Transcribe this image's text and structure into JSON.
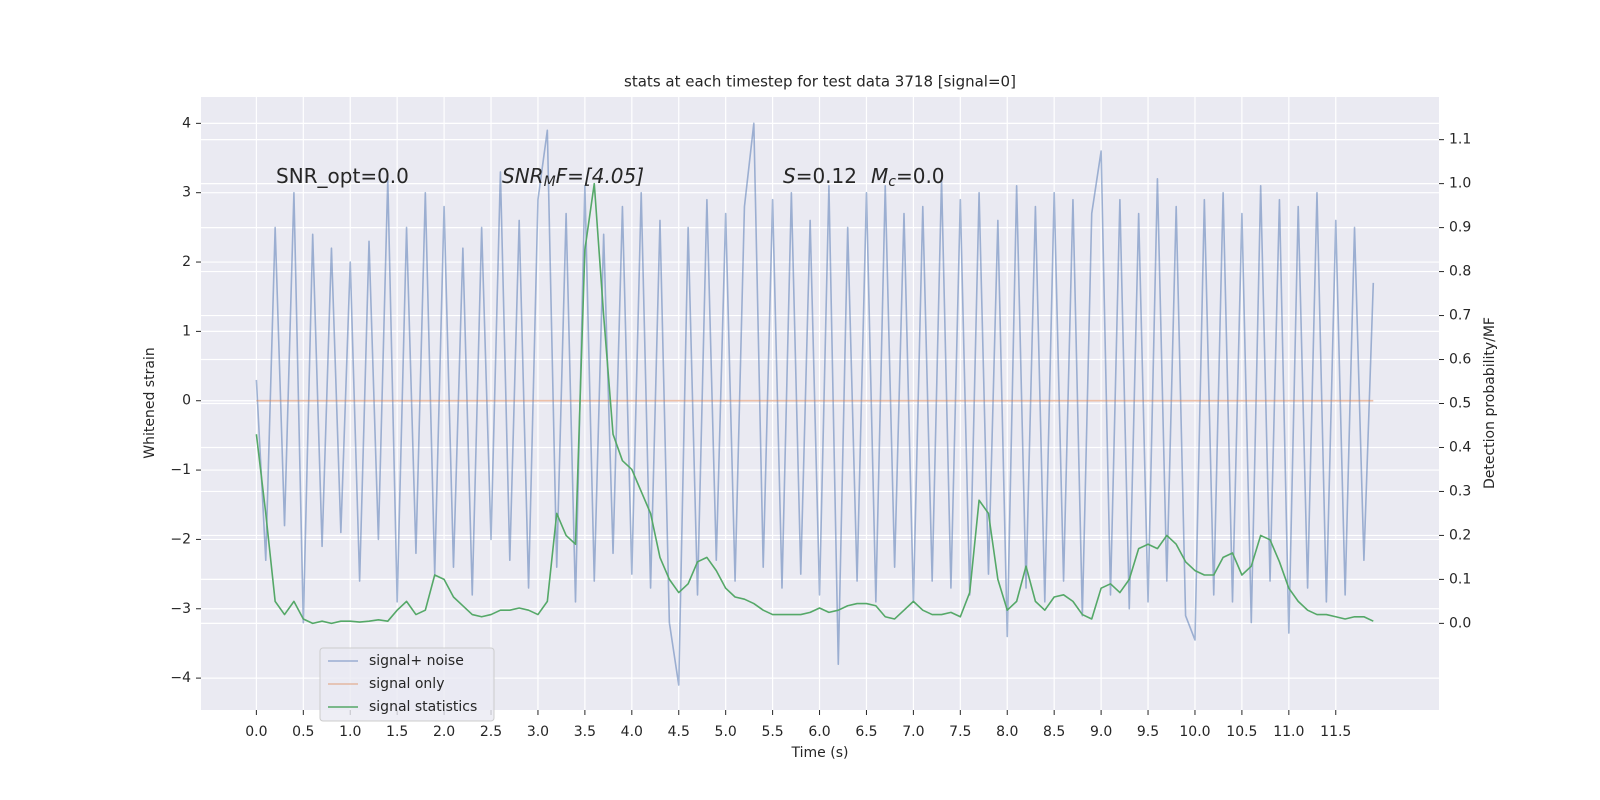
{
  "chart_data": {
    "type": "line",
    "title": "stats at each timestep for test data 3718 [signal=0]",
    "x_label": "Time (s)",
    "y_label": "Whitened strain",
    "y2_label": "Detection probability/MF",
    "annotations": [
      [
        "SNR_opt=0.0"
      ],
      [
        "SNR",
        "M",
        "F=[4.05]"
      ],
      [
        "S",
        "=0.12",
        "M",
        "c",
        "=0.0"
      ]
    ],
    "grid": true,
    "legend": "lower left",
    "xlim": [
      -0.59,
      12.6
    ],
    "ylim": [
      -4.46,
      4.38
    ],
    "y2lim": [
      -0.197,
      1.197
    ],
    "xticks": [
      {
        "value": 0,
        "label": "0.0"
      },
      0.5,
      {
        "value": 1,
        "label": "1.0"
      },
      1.5,
      {
        "value": 2,
        "label": "2.0"
      },
      2.5,
      {
        "value": 3,
        "label": "3.0"
      },
      3.5,
      {
        "value": 4,
        "label": "4.0"
      },
      4.5,
      {
        "value": 5,
        "label": "5.0"
      },
      5.5,
      {
        "value": 6,
        "label": "6.0"
      },
      6.5,
      {
        "value": 7,
        "label": "7.0"
      },
      7.5,
      {
        "value": 8,
        "label": "8.0"
      },
      8.5,
      {
        "value": 9,
        "label": "9.0"
      },
      9.5,
      {
        "value": 10,
        "label": "10.0"
      },
      10.5,
      {
        "value": 11,
        "label": "11.0"
      },
      11.5
    ],
    "yticks": [
      {
        "value": -4,
        "label": "−4"
      },
      {
        "value": -3,
        "label": "−3"
      },
      {
        "value": -2,
        "label": "−2"
      },
      {
        "value": -1,
        "label": "−1"
      },
      0,
      1,
      2,
      3,
      4
    ],
    "y2ticks": [
      {
        "value": 0,
        "label": "0.0"
      },
      0.1,
      0.2,
      0.3,
      0.4,
      0.5,
      0.6,
      0.7,
      0.8,
      0.9,
      {
        "value": 1,
        "label": "1.0"
      },
      1.1
    ],
    "x": [
      0.0,
      0.1,
      0.2,
      0.3,
      0.4,
      0.5,
      0.6,
      0.7,
      0.8,
      0.9,
      1.0,
      1.1,
      1.2,
      1.3,
      1.4,
      1.5,
      1.6,
      1.7,
      1.8,
      1.9,
      2.0,
      2.1,
      2.2,
      2.3,
      2.4,
      2.5,
      2.6,
      2.7,
      2.8,
      2.9,
      3.0,
      3.1,
      3.2,
      3.3,
      3.4,
      3.5,
      3.6,
      3.7,
      3.8,
      3.9,
      4.0,
      4.1,
      4.2,
      4.3,
      4.4,
      4.5,
      4.6,
      4.7,
      4.8,
      4.9,
      5.0,
      5.1,
      5.2,
      5.3,
      5.4,
      5.5,
      5.6,
      5.7,
      5.8,
      5.9,
      6.0,
      6.1,
      6.2,
      6.3,
      6.4,
      6.5,
      6.6,
      6.7,
      6.8,
      6.9,
      7.0,
      7.1,
      7.2,
      7.3,
      7.4,
      7.5,
      7.6,
      7.7,
      7.8,
      7.9,
      8.0,
      8.1,
      8.2,
      8.3,
      8.4,
      8.5,
      8.6,
      8.7,
      8.8,
      8.9,
      9.0,
      9.1,
      9.2,
      9.3,
      9.4,
      9.5,
      9.6,
      9.7,
      9.8,
      9.9,
      10.0,
      10.1,
      10.2,
      10.3,
      10.4,
      10.5,
      10.6,
      10.7,
      10.8,
      10.9,
      11.0,
      11.1,
      11.2,
      11.3,
      11.4,
      11.5,
      11.6,
      11.7,
      11.8,
      11.9
    ],
    "series": [
      {
        "name": "signal+ noise",
        "color": "#4c72b0",
        "values": [
          0.3,
          -2.3,
          2.5,
          -1.8,
          3.0,
          -3.2,
          2.4,
          -2.1,
          2.2,
          -1.9,
          2.0,
          -2.6,
          2.3,
          -2.0,
          3.2,
          -2.9,
          2.5,
          -2.2,
          3.0,
          -2.5,
          2.8,
          -2.4,
          2.2,
          -2.8,
          2.5,
          -2.0,
          3.3,
          -2.3,
          2.6,
          -2.7,
          2.9,
          3.9,
          -2.4,
          2.7,
          -2.9,
          3.1,
          -2.6,
          2.4,
          -2.2,
          2.8,
          -2.5,
          3.0,
          -2.7,
          2.6,
          -3.2,
          -4.1,
          2.5,
          -2.8,
          2.9,
          -2.3,
          2.7,
          -2.6,
          2.8,
          4.0,
          -2.4,
          2.9,
          -2.7,
          3.0,
          -2.5,
          2.6,
          -2.8,
          3.1,
          -3.8,
          2.5,
          -2.6,
          3.0,
          -2.9,
          3.1,
          -2.4,
          2.7,
          -2.9,
          2.8,
          -2.6,
          3.2,
          -2.7,
          2.9,
          -2.8,
          3.0,
          -2.5,
          2.6,
          -3.4,
          3.1,
          -2.7,
          2.8,
          -2.9,
          3.0,
          -2.6,
          2.9,
          -3.1,
          2.7,
          3.6,
          -2.8,
          2.9,
          -3.0,
          2.7,
          -2.9,
          3.2,
          -2.6,
          2.8,
          -3.1,
          -3.45,
          2.9,
          -2.8,
          3.0,
          -2.9,
          2.7,
          -3.2,
          3.1,
          -2.6,
          2.9,
          -3.35,
          2.8,
          -2.7,
          3.0,
          -2.9,
          2.6,
          -2.8,
          2.5,
          -2.3,
          1.7
        ]
      },
      {
        "name": "signal only",
        "color": "#dd8452",
        "values": [
          0,
          0,
          0,
          0,
          0,
          0,
          0,
          0,
          0,
          0,
          0,
          0,
          0,
          0,
          0,
          0,
          0,
          0,
          0,
          0,
          0,
          0,
          0,
          0,
          0,
          0,
          0,
          0,
          0,
          0,
          0,
          0,
          0,
          0,
          0,
          0,
          0,
          0,
          0,
          0,
          0,
          0,
          0,
          0,
          0,
          0,
          0,
          0,
          0,
          0,
          0,
          0,
          0,
          0,
          0,
          0,
          0,
          0,
          0,
          0,
          0,
          0,
          0,
          0,
          0,
          0,
          0,
          0,
          0,
          0,
          0,
          0,
          0,
          0,
          0,
          0,
          0,
          0,
          0,
          0,
          0,
          0,
          0,
          0,
          0,
          0,
          0,
          0,
          0,
          0,
          0,
          0,
          0,
          0,
          0,
          0,
          0,
          0,
          0,
          0,
          0,
          0,
          0,
          0,
          0,
          0,
          0,
          0,
          0,
          0,
          0,
          0,
          0,
          0,
          0,
          0,
          0,
          0,
          0,
          0
        ]
      },
      {
        "name": "signal statistics",
        "color": "#55a868",
        "axis": "y2",
        "values": [
          0.43,
          0.25,
          0.05,
          0.02,
          0.05,
          0.01,
          0.0,
          0.005,
          0.0,
          0.005,
          0.005,
          0.003,
          0.005,
          0.008,
          0.005,
          0.03,
          0.05,
          0.02,
          0.03,
          0.11,
          0.1,
          0.06,
          0.04,
          0.02,
          0.015,
          0.02,
          0.03,
          0.03,
          0.035,
          0.03,
          0.02,
          0.05,
          0.25,
          0.2,
          0.18,
          0.85,
          1.0,
          0.7,
          0.43,
          0.37,
          0.35,
          0.3,
          0.25,
          0.15,
          0.1,
          0.07,
          0.09,
          0.14,
          0.15,
          0.12,
          0.08,
          0.06,
          0.055,
          0.045,
          0.03,
          0.02,
          0.02,
          0.02,
          0.02,
          0.025,
          0.035,
          0.025,
          0.03,
          0.04,
          0.045,
          0.045,
          0.04,
          0.015,
          0.01,
          0.03,
          0.05,
          0.03,
          0.02,
          0.02,
          0.025,
          0.015,
          0.07,
          0.28,
          0.25,
          0.1,
          0.03,
          0.05,
          0.13,
          0.05,
          0.03,
          0.06,
          0.065,
          0.05,
          0.02,
          0.01,
          0.08,
          0.09,
          0.07,
          0.1,
          0.17,
          0.18,
          0.17,
          0.2,
          0.18,
          0.14,
          0.12,
          0.11,
          0.11,
          0.15,
          0.16,
          0.11,
          0.13,
          0.2,
          0.19,
          0.14,
          0.08,
          0.05,
          0.03,
          0.02,
          0.02,
          0.015,
          0.01,
          0.015,
          0.015,
          0.005
        ]
      }
    ]
  }
}
